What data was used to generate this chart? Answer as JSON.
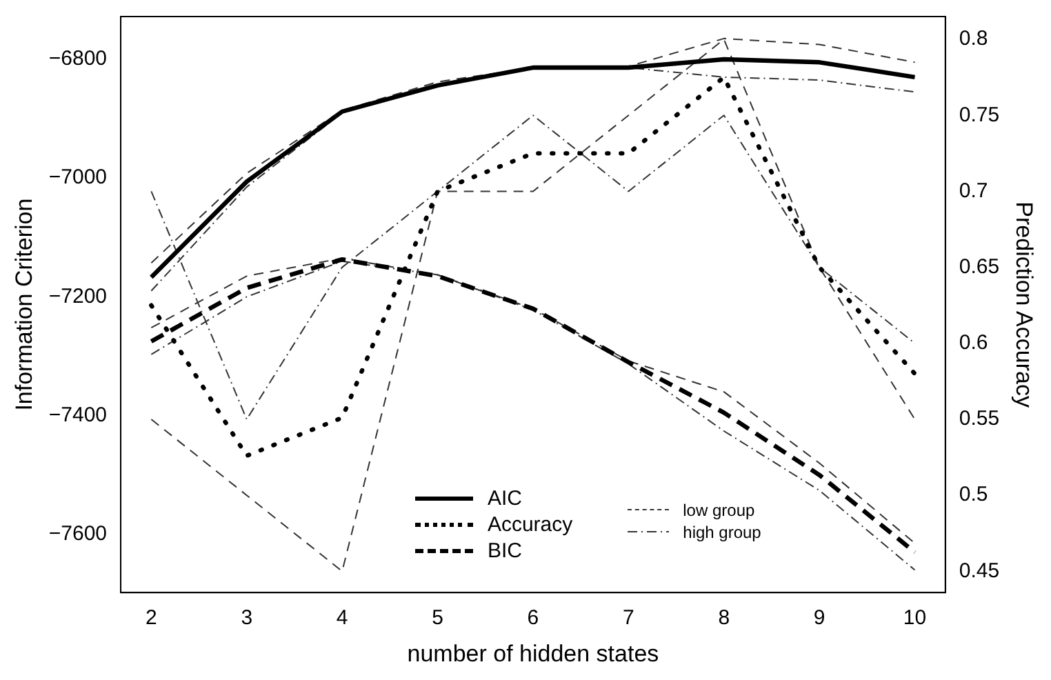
{
  "chart_data": {
    "type": "line",
    "xlabel": "number of hidden states",
    "ylabel": "Information Criterion",
    "y2label": "Prediction Accuracy",
    "x": [
      2,
      3,
      4,
      5,
      6,
      7,
      8,
      9,
      10
    ],
    "xlim": [
      1.68,
      10.32
    ],
    "xticks": [
      2,
      3,
      4,
      5,
      6,
      7,
      8,
      9,
      10
    ],
    "ylim": [
      -7698,
      -6728
    ],
    "yticks": [
      {
        "value": -7600,
        "label": "−7600"
      },
      {
        "value": -7400,
        "label": "−7400"
      },
      {
        "value": -7200,
        "label": "−7200"
      },
      {
        "value": -7000,
        "label": "−7000"
      },
      {
        "value": -6800,
        "label": "−6800"
      }
    ],
    "y2lim": [
      0.436,
      0.815
    ],
    "y2ticks": [
      0.45,
      0.5,
      0.55,
      0.6,
      0.65,
      0.7,
      0.75,
      0.8
    ],
    "grid": false,
    "legend": "bottom",
    "marker": "none",
    "series": [
      {
        "name": "AIC",
        "color": "#000000",
        "line_style": "solid",
        "values": [
          -7167,
          -7006,
          -6888,
          -6844,
          -6814,
          -6814,
          -6800,
          -6805,
          -6830
        ]
      },
      {
        "name": "Accuracy",
        "color": "#000000",
        "line_style": "dotted",
        "axis": "y2",
        "values": [
          0.625,
          0.526,
          0.551,
          0.7,
          0.725,
          0.725,
          0.775,
          0.65,
          0.58
        ]
      },
      {
        "name": "BIC",
        "color": "#000000",
        "line_style": "dashed",
        "values": [
          -7275,
          -7185,
          -7137,
          -7165,
          -7220,
          -7310,
          -7395,
          -7500,
          -7630
        ]
      },
      {
        "name": "low group",
        "color": "#333333",
        "line_style": "dashed",
        "values": [
          -7143,
          -6992,
          -6886,
          -6838,
          -6814,
          -6812,
          -6765,
          -6775,
          -6805
        ]
      },
      {
        "name": "high group",
        "color": "#333333",
        "line_style": "dashdot",
        "values": [
          -7190,
          -7015,
          -6890,
          -6843,
          -6814,
          -6814,
          -6830,
          -6835,
          -6855
        ]
      },
      {
        "color": "#333333",
        "line_style": "dashed",
        "axis": "y2",
        "values": [
          0.55,
          0.5,
          0.45,
          0.7,
          0.7,
          0.75,
          0.8,
          0.65,
          0.55
        ]
      },
      {
        "color": "#333333",
        "line_style": "dashdot",
        "axis": "y2",
        "values": [
          0.7,
          0.55,
          0.65,
          0.7,
          0.75,
          0.7,
          0.75,
          0.65,
          0.6
        ]
      },
      {
        "color": "#333333",
        "line_style": "dashed",
        "values": [
          -7252,
          -7165,
          -7135,
          -7163,
          -7220,
          -7308,
          -7360,
          -7480,
          -7615
        ]
      },
      {
        "color": "#333333",
        "line_style": "dashdot",
        "values": [
          -7297,
          -7200,
          -7140,
          -7163,
          -7222,
          -7313,
          -7426,
          -7526,
          -7660
        ]
      }
    ]
  }
}
